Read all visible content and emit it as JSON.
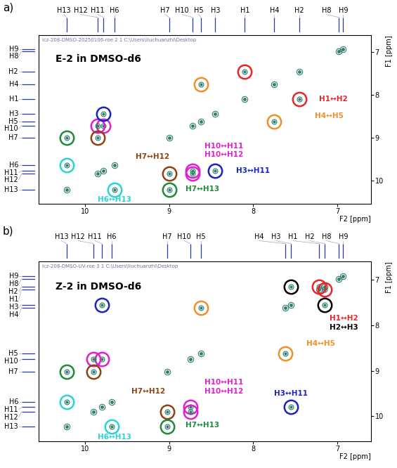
{
  "chart_data": [
    {
      "type": "scatter",
      "panel": "a)",
      "title": "E-2 in DMSO-d6",
      "header": "lcz-208-DMSO-20250106-roe 2 1 C:\\Users\\liuchuanzhi\\Desktop",
      "x_label": "F2 [ppm]",
      "y_label": "F1 [ppm]",
      "xlim": [
        10.55,
        6.6
      ],
      "xticks": [
        10,
        9,
        8,
        7
      ],
      "ylim": [
        10.55,
        6.6
      ],
      "yticks": [
        7,
        8,
        9,
        10
      ],
      "peaks": [
        {
          "name": "H13",
          "shift": 10.22
        },
        {
          "name": "H12",
          "shift": 9.85
        },
        {
          "name": "H11",
          "shift": 9.78
        },
        {
          "name": "H6",
          "shift": 9.65
        },
        {
          "name": "H7",
          "shift": 9.0
        },
        {
          "name": "H10",
          "shift": 8.72
        },
        {
          "name": "H5",
          "shift": 8.62
        },
        {
          "name": "H3",
          "shift": 8.45
        },
        {
          "name": "H1",
          "shift": 8.1
        },
        {
          "name": "H4",
          "shift": 7.75
        },
        {
          "name": "H2",
          "shift": 7.45
        },
        {
          "name": "H8",
          "shift": 6.98
        },
        {
          "name": "H9",
          "shift": 6.93
        }
      ],
      "series": [
        {
          "name": "H1↔H2",
          "color": "#e8262a",
          "x": [
            8.1,
            7.45
          ],
          "y": [
            7.45,
            8.1
          ]
        },
        {
          "name": "H4↔H5",
          "color": "#f0902a",
          "x": [
            7.75,
            8.62
          ],
          "y": [
            8.62,
            7.75
          ]
        },
        {
          "name": "H10↔H11",
          "color": "#e020d0",
          "x": [
            8.72,
            9.78
          ],
          "y": [
            9.78,
            8.72
          ]
        },
        {
          "name": "H10↔H12",
          "color": "#e020d0",
          "x": [
            8.72,
            9.85
          ],
          "y": [
            9.85,
            8.72
          ]
        },
        {
          "name": "H3↔H11",
          "color": "#1a23c8",
          "x": [
            8.45,
            9.78
          ],
          "y": [
            9.78,
            8.45
          ]
        },
        {
          "name": "H7↔H12",
          "color": "#8b4513",
          "x": [
            9.0,
            9.85
          ],
          "y": [
            9.85,
            9.0
          ]
        },
        {
          "name": "H7↔H13",
          "color": "#1f8a3a",
          "x": [
            9.0,
            10.22
          ],
          "y": [
            10.22,
            9.0
          ]
        },
        {
          "name": "H6↔H13",
          "color": "#2ad4d4",
          "x": [
            9.65,
            10.22
          ],
          "y": [
            10.22,
            9.65
          ]
        }
      ]
    },
    {
      "type": "scatter",
      "panel": "b)",
      "title": "Z-2 in DMSO-d6",
      "header": "lcz-208-DMSO-UV-roe 3 1 C:\\Users\\liuchuanzhi\\Desktop",
      "x_label": "F2 [ppm]",
      "y_label": "F1 [ppm]",
      "xlim": [
        10.55,
        6.6
      ],
      "xticks": [
        10,
        9,
        8,
        7
      ],
      "ylim": [
        10.55,
        6.6
      ],
      "yticks": [
        7,
        8,
        9,
        10
      ],
      "peaks": [
        {
          "name": "H13",
          "shift": 10.22
        },
        {
          "name": "H12",
          "shift": 9.9
        },
        {
          "name": "H11",
          "shift": 9.8
        },
        {
          "name": "H6",
          "shift": 9.68
        },
        {
          "name": "H7",
          "shift": 9.02
        },
        {
          "name": "H10",
          "shift": 8.75
        },
        {
          "name": "H5",
          "shift": 8.62
        },
        {
          "name": "H4",
          "shift": 7.62
        },
        {
          "name": "H3",
          "shift": 7.55
        },
        {
          "name": "H1",
          "shift": 7.22
        },
        {
          "name": "H2",
          "shift": 7.15
        },
        {
          "name": "H8",
          "shift": 6.98
        },
        {
          "name": "H9",
          "shift": 6.93
        }
      ],
      "series": [
        {
          "name": "H1↔H2",
          "color": "#e8262a",
          "x": [
            7.22,
            7.15
          ],
          "y": [
            7.15,
            7.22
          ]
        },
        {
          "name": "H2↔H3",
          "color": "#000000",
          "x": [
            7.15,
            7.55
          ],
          "y": [
            7.55,
            7.15
          ]
        },
        {
          "name": "H4↔H5",
          "color": "#f0902a",
          "x": [
            7.62,
            8.62
          ],
          "y": [
            8.62,
            7.62
          ]
        },
        {
          "name": "H10↔H11",
          "color": "#e020d0",
          "x": [
            8.75,
            9.8
          ],
          "y": [
            9.8,
            8.75
          ]
        },
        {
          "name": "H10↔H12",
          "color": "#e020d0",
          "x": [
            8.75,
            9.9
          ],
          "y": [
            9.9,
            8.75
          ]
        },
        {
          "name": "H3↔H11",
          "color": "#1a23c8",
          "x": [
            7.55,
            9.8
          ],
          "y": [
            9.8,
            7.55
          ]
        },
        {
          "name": "H7↔H12",
          "color": "#8b4513",
          "x": [
            9.02,
            9.9
          ],
          "y": [
            9.9,
            9.02
          ]
        },
        {
          "name": "H7↔H13",
          "color": "#1f8a3a",
          "x": [
            9.02,
            10.22
          ],
          "y": [
            10.22,
            9.02
          ]
        },
        {
          "name": "H6↔H13",
          "color": "#2ad4d4",
          "x": [
            9.68,
            10.22
          ],
          "y": [
            10.22,
            9.68
          ]
        }
      ]
    }
  ]
}
